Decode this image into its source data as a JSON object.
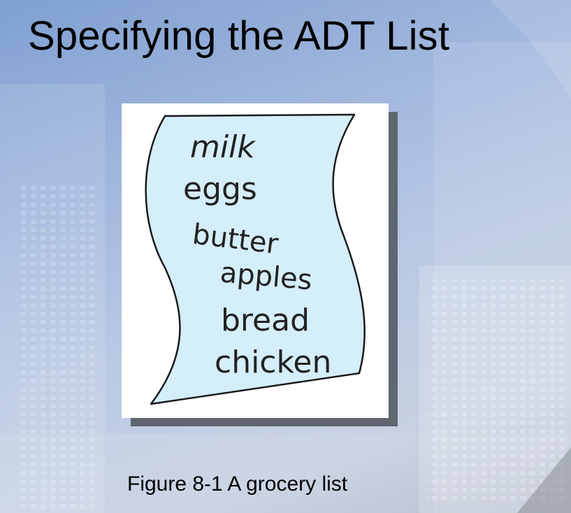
{
  "slide": {
    "title": "Specifying the ADT List",
    "caption": "Figure 8-1 A grocery list"
  },
  "figure": {
    "items": [
      "milk",
      "eggs",
      "butter",
      "apples",
      "bread",
      "chicken"
    ],
    "paper_color": "#d4eefa",
    "outline_color": "#1a1a1a"
  }
}
